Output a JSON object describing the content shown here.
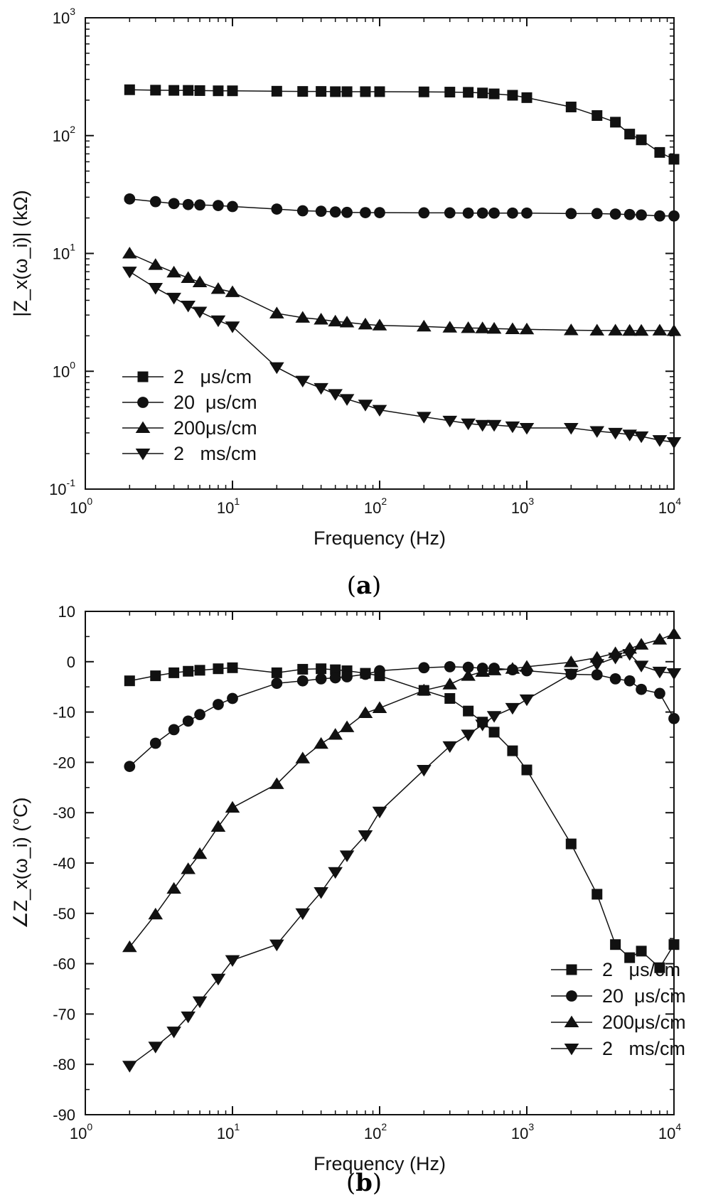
{
  "chart_data": [
    {
      "type": "line",
      "panel_label": "a",
      "xlabel": "Frequency (Hz)",
      "ylabel": "|Z_x(ω_i)| (kΩ)",
      "xscale": "log",
      "yscale": "log",
      "xlim": [
        1,
        10000
      ],
      "ylim": [
        0.1,
        1000
      ],
      "x_ticks": [
        {
          "base": "10",
          "exp": "0"
        },
        {
          "base": "10",
          "exp": "1"
        },
        {
          "base": "10",
          "exp": "2"
        },
        {
          "base": "10",
          "exp": "3"
        },
        {
          "base": "10",
          "exp": "4"
        }
      ],
      "y_ticks": [
        {
          "base": "10",
          "exp": "-1"
        },
        {
          "base": "10",
          "exp": "0"
        },
        {
          "base": "10",
          "exp": "1"
        },
        {
          "base": "10",
          "exp": "2"
        },
        {
          "base": "10",
          "exp": "3"
        }
      ],
      "legend_placement": "bottom-left",
      "grid": false,
      "x": [
        2,
        3,
        4,
        5,
        6,
        8,
        10,
        20,
        30,
        40,
        50,
        60,
        80,
        100,
        200,
        300,
        400,
        500,
        600,
        800,
        1000,
        2000,
        3000,
        4000,
        5000,
        6000,
        8000,
        10000
      ],
      "series": [
        {
          "name": "2   μs/cm",
          "marker": "square",
          "values": [
            245,
            243,
            242,
            242,
            241,
            240,
            240,
            238,
            237,
            237,
            236,
            236,
            236,
            236,
            235,
            234,
            233,
            230,
            226,
            220,
            210,
            175,
            148,
            130,
            103,
            92,
            72,
            63
          ]
        },
        {
          "name": "20  μs/cm",
          "marker": "circle",
          "values": [
            29,
            27.5,
            26.5,
            26,
            25.8,
            25.5,
            25,
            23.8,
            23,
            22.8,
            22.5,
            22.3,
            22.2,
            22.2,
            22.1,
            22.1,
            22,
            22,
            22,
            22,
            22,
            21.8,
            21.8,
            21.6,
            21.4,
            21.2,
            20.8,
            20.8
          ]
        },
        {
          "name": "200μs/cm",
          "marker": "triangle-up",
          "values": [
            10,
            8,
            6.9,
            6.2,
            5.7,
            5,
            4.7,
            3.1,
            2.85,
            2.75,
            2.65,
            2.6,
            2.5,
            2.45,
            2.4,
            2.35,
            2.33,
            2.32,
            2.3,
            2.28,
            2.27,
            2.23,
            2.22,
            2.22,
            2.21,
            2.21,
            2.22,
            2.2
          ]
        },
        {
          "name": "2   ms/cm",
          "marker": "triangle-down",
          "values": [
            7,
            5.1,
            4.2,
            3.6,
            3.2,
            2.7,
            2.4,
            1.08,
            0.83,
            0.72,
            0.64,
            0.58,
            0.52,
            0.47,
            0.41,
            0.38,
            0.36,
            0.35,
            0.35,
            0.34,
            0.33,
            0.33,
            0.31,
            0.3,
            0.29,
            0.28,
            0.26,
            0.25
          ]
        }
      ]
    },
    {
      "type": "line",
      "panel_label": "b",
      "xlabel": "Frequency (Hz)",
      "ylabel": "∠Z_x(ω_i)  (°C)",
      "xscale": "log",
      "yscale": "linear",
      "xlim": [
        1,
        10000
      ],
      "ylim": [
        -90,
        10
      ],
      "x_ticks": [
        {
          "base": "10",
          "exp": "0"
        },
        {
          "base": "10",
          "exp": "1"
        },
        {
          "base": "10",
          "exp": "2"
        },
        {
          "base": "10",
          "exp": "3"
        },
        {
          "base": "10",
          "exp": "4"
        }
      ],
      "y_ticks": [
        "-90",
        "-80",
        "-70",
        "-60",
        "-50",
        "-40",
        "-30",
        "-20",
        "-10",
        "0",
        "10"
      ],
      "legend_placement": "bottom-right",
      "grid": false,
      "x": [
        2,
        3,
        4,
        5,
        6,
        8,
        10,
        20,
        30,
        40,
        50,
        60,
        80,
        100,
        200,
        300,
        400,
        500,
        600,
        800,
        1000,
        2000,
        3000,
        4000,
        5000,
        6000,
        8000,
        10000
      ],
      "series": [
        {
          "name": "2   μs/cm",
          "marker": "square",
          "values": [
            -3.8,
            -2.8,
            -2.2,
            -1.9,
            -1.7,
            -1.4,
            -1.2,
            -2.2,
            -1.5,
            -1.4,
            -1.6,
            -1.8,
            -2.3,
            -2.8,
            -5.7,
            -7.3,
            -9.8,
            -12,
            -14,
            -17.7,
            -21.5,
            -36.2,
            -46.2,
            -56.2,
            -58.8,
            -57.5,
            -60.8,
            -56.2
          ]
        },
        {
          "name": "20  μs/cm",
          "marker": "circle",
          "values": [
            -20.8,
            -16.2,
            -13.5,
            -11.8,
            -10.5,
            -8.5,
            -7.3,
            -4.3,
            -3.8,
            -3.4,
            -3.2,
            -3.0,
            -2.5,
            -1.8,
            -1.2,
            -1.0,
            -1.1,
            -1.3,
            -1.3,
            -1.6,
            -1.8,
            -2.5,
            -2.6,
            -3.4,
            -3.8,
            -5.5,
            -6.3,
            -11.3
          ]
        },
        {
          "name": "200μs/cm",
          "marker": "triangle-up",
          "values": [
            -56.7,
            -50.2,
            -45.1,
            -41.2,
            -38.2,
            -32.8,
            -29,
            -24.3,
            -19.2,
            -16.3,
            -14.5,
            -13,
            -10.2,
            -9.2,
            -5.7,
            -4.5,
            -2.8,
            -2,
            -1.7,
            -1.4,
            -1.0,
            -0.1,
            0.8,
            1.7,
            2.6,
            3.4,
            4.4,
            5.5
          ]
        },
        {
          "name": "2   ms/cm",
          "marker": "triangle-down",
          "values": [
            -80.3,
            -76.5,
            -73.5,
            -70.5,
            -67.5,
            -63,
            -59.3,
            -56.2,
            -50,
            -45.8,
            -41.8,
            -38.5,
            -34.5,
            -29.8,
            -21.5,
            -16.8,
            -14.5,
            -12.5,
            -10.8,
            -9.2,
            -7.5,
            -2.4,
            -0.5,
            0.8,
            1.5,
            -0.8,
            -2.0,
            -2.3
          ]
        }
      ]
    }
  ]
}
